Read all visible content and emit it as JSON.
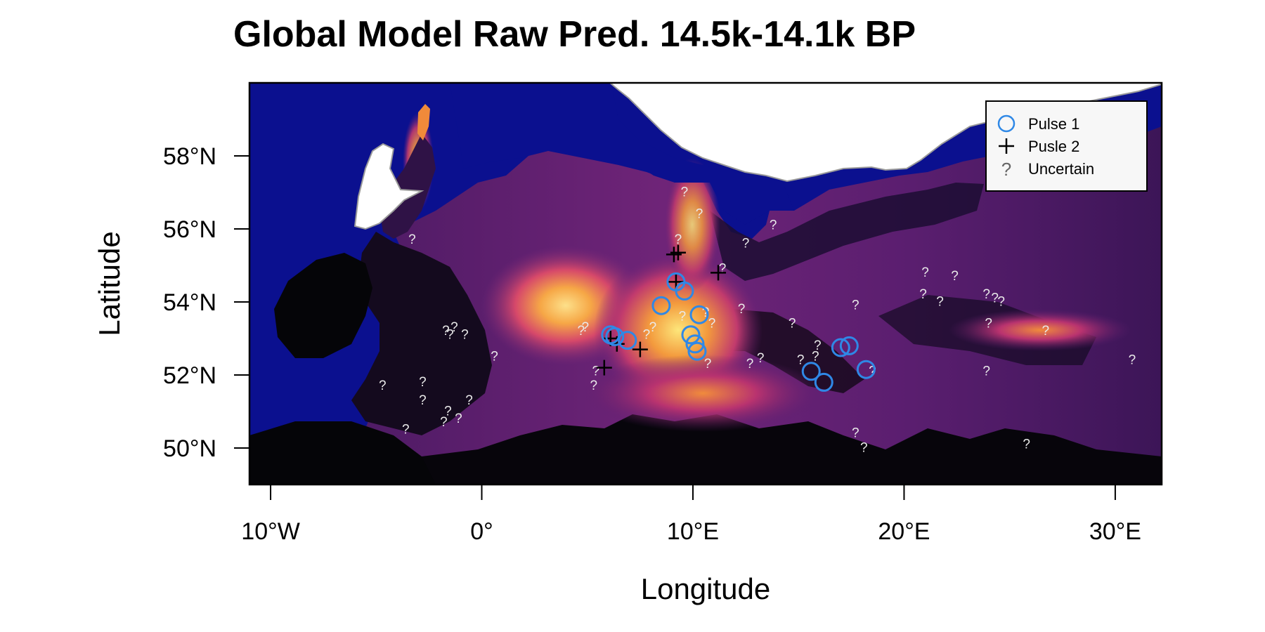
{
  "chart_data": {
    "type": "map-scatter",
    "title": "Global Model Raw Pred. 14.5k-14.1k BP",
    "xlabel": "Longitude",
    "ylabel": "Latitude",
    "xlim": [
      -11,
      32.2
    ],
    "ylim": [
      49,
      60
    ],
    "x_ticks": [
      {
        "value": -10,
        "label": "10°W"
      },
      {
        "value": 0,
        "label": "0°"
      },
      {
        "value": 10,
        "label": "10°E"
      },
      {
        "value": 20,
        "label": "20°E"
      },
      {
        "value": 30,
        "label": "30°E"
      }
    ],
    "y_ticks": [
      {
        "value": 50,
        "label": "50°N"
      },
      {
        "value": 52,
        "label": "52°N"
      },
      {
        "value": 54,
        "label": "54°N"
      },
      {
        "value": 56,
        "label": "56°N"
      },
      {
        "value": 58,
        "label": "58°N"
      }
    ],
    "legend": {
      "position": "top-right",
      "entries": [
        {
          "label": "Pulse 1",
          "symbol": "circle",
          "color": "#2f88e6"
        },
        {
          "label": "Pusle 2",
          "symbol": "plus",
          "color": "#000000"
        },
        {
          "label": "Uncertain",
          "symbol": "?",
          "color": "#666666"
        }
      ]
    },
    "series": [
      {
        "name": "Pulse 1",
        "points": [
          {
            "lon": 6.1,
            "lat": 53.1
          },
          {
            "lon": 6.3,
            "lat": 53.05
          },
          {
            "lon": 6.9,
            "lat": 52.95
          },
          {
            "lon": 8.5,
            "lat": 53.9
          },
          {
            "lon": 9.2,
            "lat": 54.55
          },
          {
            "lon": 9.6,
            "lat": 54.3
          },
          {
            "lon": 10.3,
            "lat": 53.65
          },
          {
            "lon": 9.9,
            "lat": 53.1
          },
          {
            "lon": 10.1,
            "lat": 52.85
          },
          {
            "lon": 10.2,
            "lat": 52.65
          },
          {
            "lon": 15.6,
            "lat": 52.1
          },
          {
            "lon": 16.2,
            "lat": 51.8
          },
          {
            "lon": 17.0,
            "lat": 52.75
          },
          {
            "lon": 17.4,
            "lat": 52.8
          },
          {
            "lon": 18.2,
            "lat": 52.15
          }
        ]
      },
      {
        "name": "Pusle 2",
        "points": [
          {
            "lon": 9.3,
            "lat": 55.35
          },
          {
            "lon": 9.1,
            "lat": 55.3
          },
          {
            "lon": 9.2,
            "lat": 54.55
          },
          {
            "lon": 11.2,
            "lat": 54.8
          },
          {
            "lon": 6.1,
            "lat": 53.0
          },
          {
            "lon": 6.4,
            "lat": 52.85
          },
          {
            "lon": 7.5,
            "lat": 52.7
          },
          {
            "lon": 5.8,
            "lat": 52.2
          }
        ]
      },
      {
        "name": "Uncertain",
        "points": [
          {
            "lon": -3.3,
            "lat": 55.7
          },
          {
            "lon": -1.7,
            "lat": 53.2
          },
          {
            "lon": -1.3,
            "lat": 53.3
          },
          {
            "lon": -1.5,
            "lat": 53.1
          },
          {
            "lon": -0.8,
            "lat": 53.1
          },
          {
            "lon": 0.6,
            "lat": 52.5
          },
          {
            "lon": -4.7,
            "lat": 51.7
          },
          {
            "lon": -2.8,
            "lat": 51.8
          },
          {
            "lon": -2.8,
            "lat": 51.3
          },
          {
            "lon": -1.6,
            "lat": 51.0
          },
          {
            "lon": -1.1,
            "lat": 50.8
          },
          {
            "lon": -1.8,
            "lat": 50.7
          },
          {
            "lon": -0.6,
            "lat": 51.3
          },
          {
            "lon": -3.6,
            "lat": 50.5
          },
          {
            "lon": 4.7,
            "lat": 53.2
          },
          {
            "lon": 4.9,
            "lat": 53.3
          },
          {
            "lon": 5.4,
            "lat": 52.1
          },
          {
            "lon": 5.3,
            "lat": 51.7
          },
          {
            "lon": 8.1,
            "lat": 53.3
          },
          {
            "lon": 7.8,
            "lat": 53.1
          },
          {
            "lon": 9.5,
            "lat": 53.6
          },
          {
            "lon": 10.6,
            "lat": 53.7
          },
          {
            "lon": 10.9,
            "lat": 53.4
          },
          {
            "lon": 10.7,
            "lat": 52.3
          },
          {
            "lon": 12.3,
            "lat": 53.8
          },
          {
            "lon": 12.7,
            "lat": 52.3
          },
          {
            "lon": 13.2,
            "lat": 52.45
          },
          {
            "lon": 9.6,
            "lat": 57.0
          },
          {
            "lon": 10.3,
            "lat": 56.4
          },
          {
            "lon": 9.3,
            "lat": 55.7
          },
          {
            "lon": 11.4,
            "lat": 54.9
          },
          {
            "lon": 12.5,
            "lat": 55.6
          },
          {
            "lon": 13.8,
            "lat": 56.1
          },
          {
            "lon": 14.7,
            "lat": 53.4
          },
          {
            "lon": 15.1,
            "lat": 52.4
          },
          {
            "lon": 15.8,
            "lat": 52.5
          },
          {
            "lon": 15.9,
            "lat": 52.8
          },
          {
            "lon": 17.7,
            "lat": 53.9
          },
          {
            "lon": 18.5,
            "lat": 52.1
          },
          {
            "lon": 21.0,
            "lat": 54.8
          },
          {
            "lon": 22.4,
            "lat": 54.7
          },
          {
            "lon": 20.9,
            "lat": 54.2
          },
          {
            "lon": 21.7,
            "lat": 54.0
          },
          {
            "lon": 23.9,
            "lat": 54.2
          },
          {
            "lon": 24.3,
            "lat": 54.1
          },
          {
            "lon": 24.6,
            "lat": 54.0
          },
          {
            "lon": 24.0,
            "lat": 53.4
          },
          {
            "lon": 26.7,
            "lat": 53.2
          },
          {
            "lon": 23.9,
            "lat": 52.1
          },
          {
            "lon": 30.8,
            "lat": 52.4
          },
          {
            "lon": 17.7,
            "lat": 50.4
          },
          {
            "lon": 18.1,
            "lat": 50.0
          },
          {
            "lon": 25.8,
            "lat": 50.1
          }
        ]
      }
    ]
  },
  "colors": {
    "sea": "#0b108f",
    "land_dark": "#050508",
    "ice": "#ffffff",
    "pred_low": "#2a0f48",
    "pred_mid": "#8d2a7f",
    "pred_high": "#ee6b45",
    "pred_peak": "#fbc948",
    "pulse1": "#2f88e6"
  }
}
